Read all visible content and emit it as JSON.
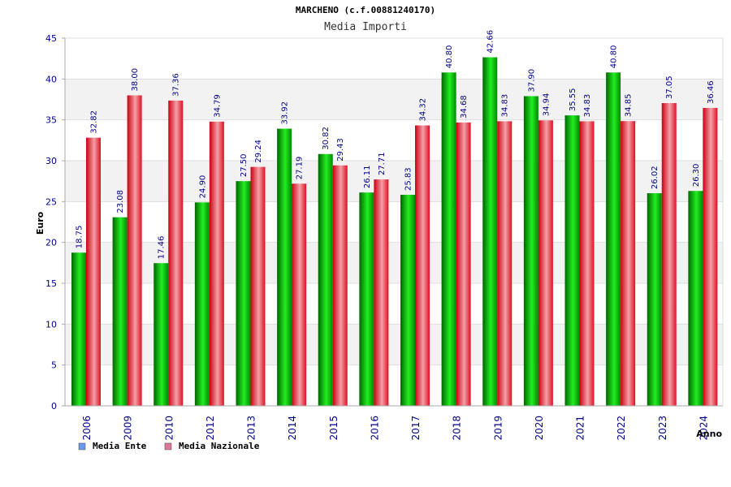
{
  "chart_data": {
    "type": "bar",
    "title": "MARCHENO (c.f.00881240170)",
    "subtitle": "Media Importi",
    "ylabel": "Euro",
    "xlabel": "Anno",
    "ylim": [
      0,
      45
    ],
    "yticks": [
      0,
      5,
      10,
      15,
      20,
      25,
      30,
      35,
      40,
      45
    ],
    "grid": true,
    "legend_position": "bottom-left",
    "categories": [
      "2006",
      "2009",
      "2010",
      "2012",
      "2013",
      "2014",
      "2015",
      "2016",
      "2017",
      "2018",
      "2019",
      "2020",
      "2021",
      "2022",
      "2023",
      "2024"
    ],
    "series": [
      {
        "name": "Media Ente",
        "color": "#00bb00",
        "legend_color": "#6699ee",
        "values": [
          18.75,
          23.08,
          17.46,
          24.9,
          27.5,
          33.92,
          30.82,
          26.11,
          25.83,
          40.8,
          42.66,
          37.9,
          35.55,
          40.8,
          26.02,
          26.3
        ],
        "labels": [
          "18.75",
          "23.08",
          "17.46",
          "24.90",
          "27.50",
          "33.92",
          "30.82",
          "26.11",
          "25.83",
          "40.80",
          "42.66",
          "37.90",
          "35.55",
          "40.80",
          "26.02",
          "26.30"
        ]
      },
      {
        "name": "Media Nazionale",
        "color": "#ee2233",
        "legend_color": "#dd7799",
        "values": [
          32.82,
          38.0,
          37.36,
          34.79,
          29.24,
          27.19,
          29.43,
          27.71,
          34.32,
          34.68,
          34.83,
          34.94,
          34.83,
          34.85,
          37.05,
          36.46
        ],
        "labels": [
          "32.82",
          "38.00",
          "37.36",
          "34.79",
          "29.24",
          "27.19",
          "29.43",
          "27.71",
          "34.32",
          "34.68",
          "34.83",
          "34.94",
          "34.83",
          "34.85",
          "37.05",
          "36.46"
        ]
      }
    ]
  }
}
